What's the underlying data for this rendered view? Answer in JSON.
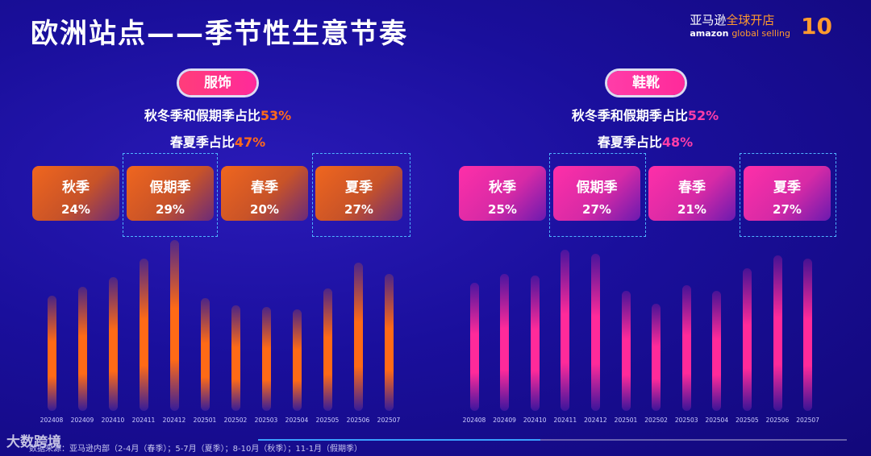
{
  "title": "欧洲站点——季节性生意节奏",
  "brand": {
    "cn_prefix": "亚马逊",
    "cn_suffix": "全球开店",
    "en_prefix": "amazon",
    "en_suffix": "global selling",
    "anniversary": "10"
  },
  "footnote": "数据来源：亚马逊内部（2-4月（春季）；5-7月（夏季）；8-10月（秋季）；11-1月（假期季）",
  "watermark": "大数跨境",
  "colors": {
    "apparel": "#ff6a16",
    "shoes": "#ff2a9a",
    "background": "#1a0f9c",
    "highlight_box": "#4fb4ff"
  },
  "chart_data": [
    {
      "type": "bar",
      "category_label": "服饰",
      "summary_line1": {
        "text": "秋冬季和假期季占比",
        "pct": "53%"
      },
      "summary_line2": {
        "text": "春夏季占比",
        "pct": "47%"
      },
      "season_cards": [
        {
          "season": "秋季",
          "share": "24%",
          "highlighted": false
        },
        {
          "season": "假期季",
          "share": "29%",
          "highlighted": true
        },
        {
          "season": "春季",
          "share": "20%",
          "highlighted": false
        },
        {
          "season": "夏季",
          "share": "27%",
          "highlighted": true
        }
      ],
      "categories": [
        "202408",
        "202409",
        "202410",
        "202411",
        "202412",
        "202501",
        "202502",
        "202503",
        "202504",
        "202505",
        "202506",
        "202507"
      ],
      "values": [
        62,
        67,
        72,
        82,
        92,
        61,
        57,
        56,
        55,
        66,
        80,
        74
      ],
      "ylim": [
        0,
        100
      ]
    },
    {
      "type": "bar",
      "category_label": "鞋靴",
      "summary_line1": {
        "text": "秋冬季和假期季占比",
        "pct": "52%"
      },
      "summary_line2": {
        "text": "春夏季占比",
        "pct": "48%"
      },
      "season_cards": [
        {
          "season": "秋季",
          "share": "25%",
          "highlighted": false
        },
        {
          "season": "假期季",
          "share": "27%",
          "highlighted": true
        },
        {
          "season": "春季",
          "share": "21%",
          "highlighted": false
        },
        {
          "season": "夏季",
          "share": "27%",
          "highlighted": true
        }
      ],
      "categories": [
        "202408",
        "202409",
        "202410",
        "202411",
        "202412",
        "202501",
        "202502",
        "202503",
        "202504",
        "202505",
        "202506",
        "202507"
      ],
      "values": [
        69,
        74,
        73,
        87,
        85,
        65,
        58,
        68,
        65,
        77,
        84,
        82
      ],
      "ylim": [
        0,
        100
      ]
    }
  ]
}
